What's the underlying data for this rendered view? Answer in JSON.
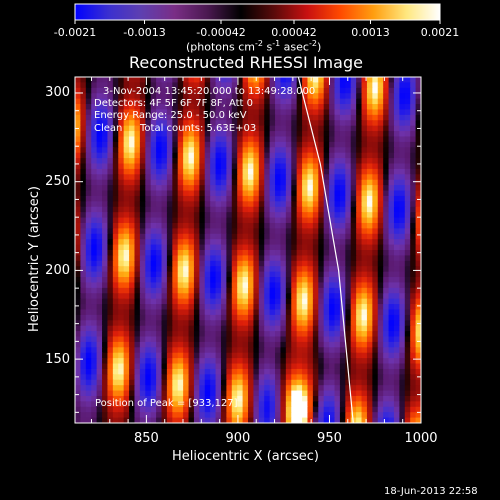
{
  "colorbar": {
    "tick_labels": [
      "-0.0021",
      "-0.0013",
      "-0.00042",
      "0.00042",
      "0.0013",
      "0.0021"
    ],
    "tick_values": [
      -0.0021,
      -0.0013,
      -0.00042,
      0.00042,
      0.0013,
      0.0021
    ],
    "range": [
      -0.0021,
      0.0021
    ],
    "units": "(photons cm",
    "units_sup1": "-2",
    "units_mid": " s",
    "units_sup2": "-1",
    "units_tail": " asec",
    "units_sup3": "-2",
    "units_close": ")",
    "colors": [
      "#0000ff",
      "#3a2fd0",
      "#5e3fb0",
      "#7a2e86",
      "#4a1850",
      "#000000",
      "#5a0a0a",
      "#c81010",
      "#ff4a00",
      "#ff9e10",
      "#ffe880",
      "#ffffff"
    ]
  },
  "title": "Reconstructed RHESSI Image",
  "info": {
    "time": "3-Nov-2004 13:45:20.000 to 13:49:28.000",
    "detectors": "Detectors: 4F 5F 6F 7F 8F, Att 0",
    "energy": "Energy Range: 25.0 - 50.0 keV",
    "clean": "Clean",
    "counts": "Total counts: 5.63E+03",
    "peak": "Position of Peak = [933,127]"
  },
  "chart_data": {
    "type": "heatmap",
    "title": "Reconstructed RHESSI Image",
    "xlabel": "Heliocentric X (arcsec)",
    "ylabel": "Heliocentric Y (arcsec)",
    "xlim": [
      811,
      1000
    ],
    "ylim": [
      114,
      309
    ],
    "x_ticks": [
      850,
      900,
      950,
      1000
    ],
    "y_ticks": [
      150,
      200,
      250,
      300
    ],
    "peak": [
      933,
      127
    ],
    "limb_curve": [
      [
        933,
        309
      ],
      [
        945,
        260
      ],
      [
        955,
        200
      ],
      [
        963,
        114
      ]
    ]
  },
  "footer": {
    "timestamp": "18-Jun-2013 22:58"
  }
}
